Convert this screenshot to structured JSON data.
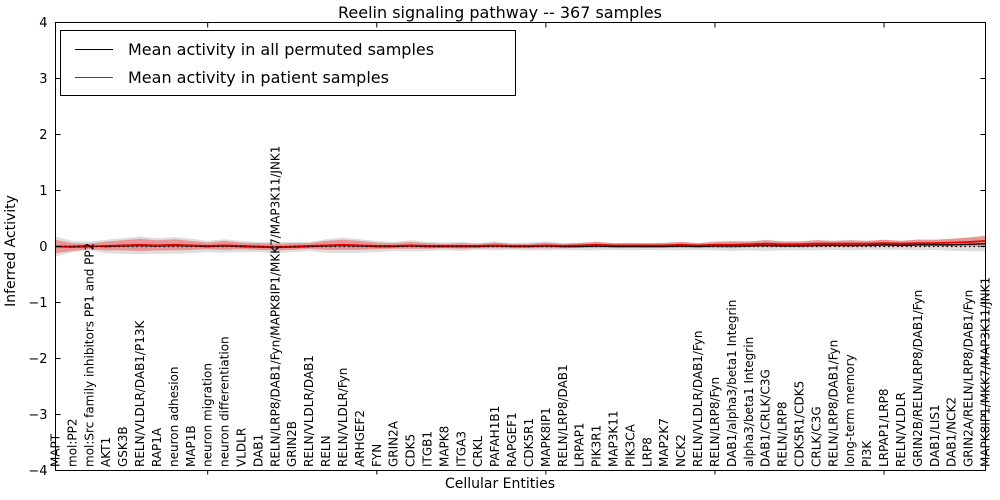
{
  "figure": {
    "title": "Reelin signaling pathway -- 367 samples",
    "xlabel": "Cellular Entities",
    "ylabel": "Inferred Activity"
  },
  "legend": {
    "position": "upper left",
    "entries": [
      {
        "label": "Mean activity in all permuted samples",
        "color": "#000000"
      },
      {
        "label": "Mean activity in patient samples",
        "color": "#ff0000"
      }
    ]
  },
  "chart_data": {
    "type": "line",
    "title": "Reelin signaling pathway -- 367 samples",
    "xlabel": "Cellular Entities",
    "ylabel": "Inferred Activity",
    "ylim": [
      -4,
      4
    ],
    "ytick_labels": [
      "4",
      "3",
      "2",
      "1",
      "0",
      "−1",
      "−2",
      "−3",
      "−4"
    ],
    "ytick_values": [
      4,
      3,
      2,
      1,
      0,
      -1,
      -2,
      -3,
      -4
    ],
    "xtick_values": [
      10,
      20,
      30,
      40,
      50
    ],
    "grid": false,
    "legend_position": "upper left",
    "zero_line": {
      "y": 0,
      "style": "dotted",
      "color": "#000000"
    },
    "categories": [
      "MAPT",
      "mol:PP2",
      "mol:Src family inhibitors PP1 and PP2",
      "AKT1",
      "GSK3B",
      "RELN/VLDLR/DAB1/P13K",
      "RAP1A",
      "neuron adhesion",
      "MAP1B",
      "neuron migration",
      "neuron differentiation",
      "VLDLR",
      "DAB1",
      "RELN/LRP8/DAB1/Fyn/MAPK8IP1/MKK7/MAP3K11/JNK1",
      "GRIN2B",
      "RELN/VLDLR/DAB1",
      "RELN",
      "RELN/VLDLR/Fyn",
      "ARHGEF2",
      "FYN",
      "GRIN2A",
      "CDK5",
      "ITGB1",
      "MAPK8",
      "ITGA3",
      "CRKL",
      "PAFAH1B1",
      "RAPGEF1",
      "CDK5R1",
      "MAPK8IP1",
      "RELN/LRP8/DAB1",
      "LRPAP1",
      "PIK3R1",
      "MAP3K11",
      "PIK3CA",
      "LRP8",
      "MAP2K7",
      "NCK2",
      "RELN/VLDLR/DAB1/Fyn",
      "RELN/LRP8/Fyn",
      "DAB1/alpha3/beta1 Integrin",
      "alpha3/beta1 Integrin",
      "DAB1/CRLK/C3G",
      "RELN/LRP8",
      "CDK5R1/CDK5",
      "CRLK/C3G",
      "RELN/LRP8/DAB1/Fyn",
      "long-term memory",
      "PI3K",
      "LRPAP1/LRP8",
      "RELN/VLDLR",
      "GRIN2B/RELN/LRP8/DAB1/Fyn",
      "DAB1/LIS1",
      "DAB1/NCK2",
      "GRIN2A/RELN/LRP8/DAB1/Fyn",
      "MAPK8IP1/MKK7/MAP3K11/JNK1"
    ],
    "series": [
      {
        "name": "Mean activity in all permuted samples",
        "color": "#000000",
        "band_color": "rgba(0,0,0,0.13)",
        "values": [
          0.0,
          0.0,
          0.01,
          0.0,
          0.01,
          0.02,
          0.01,
          0.02,
          0.01,
          0.0,
          0.01,
          0.0,
          -0.01,
          -0.02,
          -0.01,
          0.0,
          0.01,
          0.02,
          0.01,
          0.0,
          0.0,
          0.01,
          0.0,
          0.0,
          0.0,
          0.0,
          0.01,
          0.0,
          0.0,
          0.01,
          0.0,
          0.0,
          0.01,
          0.0,
          0.0,
          0.0,
          0.0,
          0.01,
          0.0,
          0.01,
          0.01,
          0.01,
          0.02,
          0.01,
          0.01,
          0.02,
          0.02,
          0.02,
          0.02,
          0.03,
          0.02,
          0.03,
          0.03,
          0.03,
          0.04,
          0.05
        ],
        "band_halfwidth": [
          0.18,
          0.1,
          0.08,
          0.12,
          0.14,
          0.16,
          0.14,
          0.15,
          0.13,
          0.1,
          0.12,
          0.1,
          0.09,
          0.1,
          0.09,
          0.08,
          0.12,
          0.14,
          0.12,
          0.1,
          0.08,
          0.1,
          0.08,
          0.07,
          0.08,
          0.06,
          0.08,
          0.06,
          0.07,
          0.08,
          0.06,
          0.07,
          0.08,
          0.06,
          0.07,
          0.06,
          0.07,
          0.08,
          0.06,
          0.08,
          0.09,
          0.08,
          0.1,
          0.08,
          0.08,
          0.09,
          0.08,
          0.09,
          0.08,
          0.09,
          0.08,
          0.1,
          0.09,
          0.11,
          0.12,
          0.14
        ]
      },
      {
        "name": "Mean activity in patient samples",
        "color": "#e60000",
        "band_color": "rgba(255,0,0,0.33)",
        "values": [
          0.0,
          -0.01,
          0.0,
          0.01,
          0.02,
          0.03,
          0.02,
          0.03,
          0.02,
          0.01,
          0.02,
          0.01,
          0.0,
          -0.01,
          0.0,
          0.01,
          0.02,
          0.03,
          0.02,
          0.01,
          0.01,
          0.02,
          0.01,
          0.01,
          0.01,
          0.01,
          0.02,
          0.01,
          0.01,
          0.02,
          0.01,
          0.02,
          0.03,
          0.02,
          0.02,
          0.02,
          0.02,
          0.03,
          0.02,
          0.03,
          0.03,
          0.04,
          0.05,
          0.04,
          0.04,
          0.05,
          0.05,
          0.05,
          0.05,
          0.06,
          0.05,
          0.06,
          0.06,
          0.07,
          0.08,
          0.1
        ],
        "band_halfwidth": [
          0.12,
          0.07,
          0.05,
          0.08,
          0.09,
          0.11,
          0.09,
          0.1,
          0.08,
          0.06,
          0.08,
          0.06,
          0.06,
          0.06,
          0.06,
          0.05,
          0.08,
          0.09,
          0.08,
          0.06,
          0.05,
          0.06,
          0.05,
          0.04,
          0.05,
          0.04,
          0.05,
          0.04,
          0.04,
          0.05,
          0.04,
          0.04,
          0.05,
          0.04,
          0.04,
          0.04,
          0.04,
          0.05,
          0.04,
          0.05,
          0.06,
          0.05,
          0.06,
          0.05,
          0.05,
          0.06,
          0.05,
          0.06,
          0.05,
          0.06,
          0.05,
          0.06,
          0.06,
          0.07,
          0.08,
          0.09
        ]
      }
    ]
  },
  "colors": {
    "background": "#ffffff",
    "axis": "#000000",
    "permuted_line": "#000000",
    "patient_line": "#e60000",
    "zero_line": "#000000"
  }
}
